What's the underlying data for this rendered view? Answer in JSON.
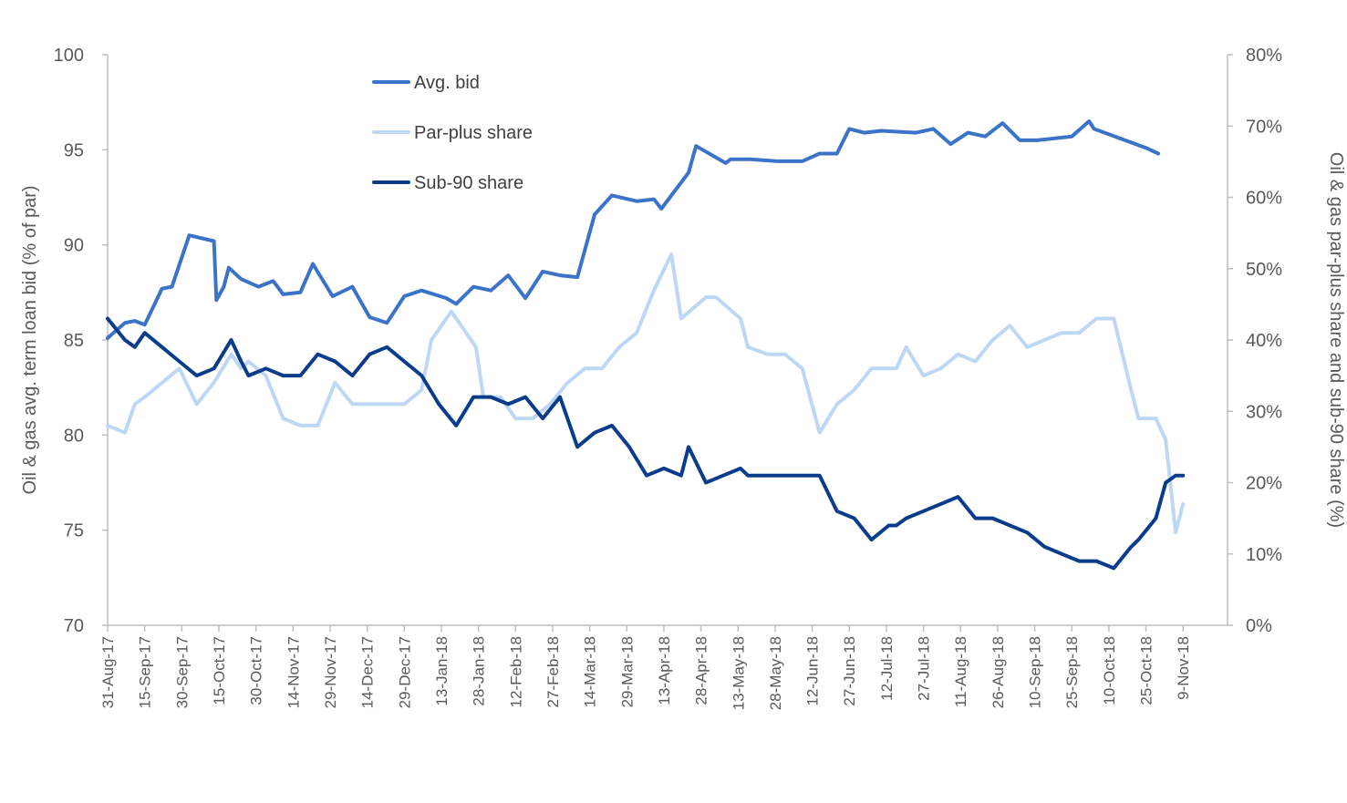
{
  "chart_data": {
    "type": "line",
    "title": "",
    "ylabel_left": "Oil & gas  avg. term loan bid (% of par)",
    "ylabel_right": "Oil & gas par-plus share and sub-90 share (%)",
    "xlabel": "",
    "y_left_range": [
      70,
      100
    ],
    "y_left_ticks": [
      70,
      75,
      80,
      85,
      90,
      95,
      100
    ],
    "y_right_range": [
      0,
      80
    ],
    "y_right_ticks": [
      "0%",
      "10%",
      "20%",
      "30%",
      "40%",
      "50%",
      "60%",
      "70%",
      "80%"
    ],
    "x_range": [
      "2017-08-31",
      "2018-11-27"
    ],
    "x_ticks": [
      "31-Aug-17",
      "15-Sep-17",
      "30-Sep-17",
      "15-Oct-17",
      "30-Oct-17",
      "14-Nov-17",
      "29-Nov-17",
      "14-Dec-17",
      "29-Dec-17",
      "13-Jan-18",
      "28-Jan-18",
      "12-Feb-18",
      "27-Feb-18",
      "14-Mar-18",
      "29-Mar-18",
      "13-Apr-18",
      "28-Apr-18",
      "13-May-18",
      "28-May-18",
      "12-Jun-18",
      "27-Jun-18",
      "12-Jul-18",
      "27-Jul-18",
      "11-Aug-18",
      "26-Aug-18",
      "10-Sep-18",
      "25-Sep-18",
      "10-Oct-18",
      "25-Oct-18",
      "9-Nov-18"
    ],
    "grid": false,
    "legend_position": "top-left-inside",
    "series": [
      {
        "name": "Avg. bid",
        "axis": "left",
        "color": "#3B73C8",
        "points": [
          [
            "2017-08-31",
            85.1
          ],
          [
            "2017-09-07",
            85.9
          ],
          [
            "2017-09-11",
            86.0
          ],
          [
            "2017-09-15",
            85.8
          ],
          [
            "2017-09-22",
            87.7
          ],
          [
            "2017-09-26",
            87.8
          ],
          [
            "2017-10-03",
            90.5
          ],
          [
            "2017-10-13",
            90.2
          ],
          [
            "2017-10-14",
            87.1
          ],
          [
            "2017-10-17",
            87.8
          ],
          [
            "2017-10-19",
            88.8
          ],
          [
            "2017-10-24",
            88.2
          ],
          [
            "2017-10-31",
            87.8
          ],
          [
            "2017-11-06",
            88.1
          ],
          [
            "2017-11-10",
            87.4
          ],
          [
            "2017-11-17",
            87.5
          ],
          [
            "2017-11-22",
            89.0
          ],
          [
            "2017-11-30",
            87.3
          ],
          [
            "2017-12-08",
            87.8
          ],
          [
            "2017-12-15",
            86.2
          ],
          [
            "2017-12-22",
            85.9
          ],
          [
            "2017-12-29",
            87.3
          ],
          [
            "2018-01-05",
            87.6
          ],
          [
            "2018-01-15",
            87.2
          ],
          [
            "2018-01-19",
            86.9
          ],
          [
            "2018-01-26",
            87.8
          ],
          [
            "2018-02-02",
            87.6
          ],
          [
            "2018-02-09",
            88.4
          ],
          [
            "2018-02-16",
            87.2
          ],
          [
            "2018-02-23",
            88.6
          ],
          [
            "2018-03-02",
            88.4
          ],
          [
            "2018-03-09",
            88.3
          ],
          [
            "2018-03-16",
            91.6
          ],
          [
            "2018-03-23",
            92.6
          ],
          [
            "2018-04-02",
            92.3
          ],
          [
            "2018-04-09",
            92.4
          ],
          [
            "2018-04-12",
            91.9
          ],
          [
            "2018-04-23",
            93.8
          ],
          [
            "2018-04-26",
            95.2
          ],
          [
            "2018-05-08",
            94.3
          ],
          [
            "2018-05-10",
            94.5
          ],
          [
            "2018-05-18",
            94.5
          ],
          [
            "2018-05-29",
            94.4
          ],
          [
            "2018-06-08",
            94.4
          ],
          [
            "2018-06-15",
            94.8
          ],
          [
            "2018-06-22",
            94.8
          ],
          [
            "2018-06-27",
            96.1
          ],
          [
            "2018-07-03",
            95.9
          ],
          [
            "2018-07-10",
            96.0
          ],
          [
            "2018-07-24",
            95.9
          ],
          [
            "2018-07-31",
            96.1
          ],
          [
            "2018-08-07",
            95.3
          ],
          [
            "2018-08-14",
            95.9
          ],
          [
            "2018-08-21",
            95.7
          ],
          [
            "2018-08-28",
            96.4
          ],
          [
            "2018-09-04",
            95.5
          ],
          [
            "2018-09-11",
            95.5
          ],
          [
            "2018-09-25",
            95.7
          ],
          [
            "2018-10-02",
            96.5
          ],
          [
            "2018-10-04",
            96.1
          ],
          [
            "2018-10-25",
            95.1
          ],
          [
            "2018-10-30",
            94.8
          ]
        ]
      },
      {
        "name": "Par-plus share",
        "axis": "right",
        "color": "#BDD7F5",
        "points": [
          [
            "2017-08-31",
            0.28
          ],
          [
            "2017-09-07",
            0.27
          ],
          [
            "2017-09-11",
            0.31
          ],
          [
            "2017-09-15",
            0.32
          ],
          [
            "2017-09-22",
            0.34
          ],
          [
            "2017-09-29",
            0.36
          ],
          [
            "2017-10-06",
            0.31
          ],
          [
            "2017-10-13",
            0.34
          ],
          [
            "2017-10-20",
            0.38
          ],
          [
            "2017-10-24",
            0.36
          ],
          [
            "2017-10-27",
            0.37
          ],
          [
            "2017-11-03",
            0.35
          ],
          [
            "2017-11-10",
            0.29
          ],
          [
            "2017-11-17",
            0.28
          ],
          [
            "2017-11-24",
            0.28
          ],
          [
            "2017-12-01",
            0.34
          ],
          [
            "2017-12-08",
            0.31
          ],
          [
            "2017-12-15",
            0.31
          ],
          [
            "2017-12-22",
            0.31
          ],
          [
            "2017-12-29",
            0.31
          ],
          [
            "2018-01-05",
            0.33
          ],
          [
            "2018-01-09",
            0.4
          ],
          [
            "2018-01-17",
            0.44
          ],
          [
            "2018-01-23",
            0.41
          ],
          [
            "2018-01-27",
            0.39
          ],
          [
            "2018-01-30",
            0.32
          ],
          [
            "2018-02-06",
            0.32
          ],
          [
            "2018-02-12",
            0.29
          ],
          [
            "2018-02-19",
            0.29
          ],
          [
            "2018-02-26",
            0.31
          ],
          [
            "2018-03-05",
            0.34
          ],
          [
            "2018-03-12",
            0.36
          ],
          [
            "2018-03-19",
            0.36
          ],
          [
            "2018-03-26",
            0.39
          ],
          [
            "2018-04-02",
            0.41
          ],
          [
            "2018-04-09",
            0.47
          ],
          [
            "2018-04-16",
            0.52
          ],
          [
            "2018-04-20",
            0.43
          ],
          [
            "2018-04-30",
            0.46
          ],
          [
            "2018-05-04",
            0.46
          ],
          [
            "2018-05-14",
            0.43
          ],
          [
            "2018-05-17",
            0.39
          ],
          [
            "2018-05-25",
            0.38
          ],
          [
            "2018-06-01",
            0.38
          ],
          [
            "2018-06-08",
            0.36
          ],
          [
            "2018-06-15",
            0.27
          ],
          [
            "2018-06-22",
            0.31
          ],
          [
            "2018-06-29",
            0.33
          ],
          [
            "2018-07-06",
            0.36
          ],
          [
            "2018-07-13",
            0.36
          ],
          [
            "2018-07-16",
            0.36
          ],
          [
            "2018-07-20",
            0.39
          ],
          [
            "2018-07-27",
            0.35
          ],
          [
            "2018-08-03",
            0.36
          ],
          [
            "2018-08-10",
            0.38
          ],
          [
            "2018-08-17",
            0.37
          ],
          [
            "2018-08-24",
            0.4
          ],
          [
            "2018-08-31",
            0.42
          ],
          [
            "2018-09-07",
            0.39
          ],
          [
            "2018-09-14",
            0.4
          ],
          [
            "2018-09-21",
            0.41
          ],
          [
            "2018-09-28",
            0.41
          ],
          [
            "2018-10-05",
            0.43
          ],
          [
            "2018-10-12",
            0.43
          ],
          [
            "2018-10-19",
            0.33
          ],
          [
            "2018-10-22",
            0.29
          ],
          [
            "2018-10-29",
            0.29
          ],
          [
            "2018-11-02",
            0.26
          ],
          [
            "2018-11-06",
            0.13
          ],
          [
            "2018-11-09",
            0.17
          ]
        ]
      },
      {
        "name": "Sub-90 share",
        "axis": "right",
        "color": "#0B3C8C",
        "points": [
          [
            "2017-08-31",
            0.43
          ],
          [
            "2017-09-07",
            0.4
          ],
          [
            "2017-09-11",
            0.39
          ],
          [
            "2017-09-15",
            0.41
          ],
          [
            "2017-09-22",
            0.39
          ],
          [
            "2017-09-29",
            0.37
          ],
          [
            "2017-10-06",
            0.35
          ],
          [
            "2017-10-13",
            0.36
          ],
          [
            "2017-10-20",
            0.4
          ],
          [
            "2017-10-24",
            0.37
          ],
          [
            "2017-10-27",
            0.35
          ],
          [
            "2017-11-03",
            0.36
          ],
          [
            "2017-11-10",
            0.35
          ],
          [
            "2017-11-17",
            0.35
          ],
          [
            "2017-11-24",
            0.38
          ],
          [
            "2017-12-01",
            0.37
          ],
          [
            "2017-12-08",
            0.35
          ],
          [
            "2017-12-15",
            0.38
          ],
          [
            "2017-12-22",
            0.39
          ],
          [
            "2017-12-29",
            0.37
          ],
          [
            "2018-01-05",
            0.35
          ],
          [
            "2018-01-12",
            0.31
          ],
          [
            "2018-01-19",
            0.28
          ],
          [
            "2018-01-26",
            0.32
          ],
          [
            "2018-02-02",
            0.32
          ],
          [
            "2018-02-09",
            0.31
          ],
          [
            "2018-02-16",
            0.32
          ],
          [
            "2018-02-23",
            0.29
          ],
          [
            "2018-03-02",
            0.32
          ],
          [
            "2018-03-09",
            0.25
          ],
          [
            "2018-03-16",
            0.27
          ],
          [
            "2018-03-23",
            0.28
          ],
          [
            "2018-03-30",
            0.25
          ],
          [
            "2018-04-06",
            0.21
          ],
          [
            "2018-04-13",
            0.22
          ],
          [
            "2018-04-20",
            0.21
          ],
          [
            "2018-04-23",
            0.25
          ],
          [
            "2018-04-30",
            0.2
          ],
          [
            "2018-05-07",
            0.21
          ],
          [
            "2018-05-14",
            0.22
          ],
          [
            "2018-05-17",
            0.21
          ],
          [
            "2018-05-21",
            0.21
          ],
          [
            "2018-05-28",
            0.21
          ],
          [
            "2018-06-04",
            0.21
          ],
          [
            "2018-06-08",
            0.21
          ],
          [
            "2018-06-15",
            0.21
          ],
          [
            "2018-06-22",
            0.16
          ],
          [
            "2018-06-29",
            0.15
          ],
          [
            "2018-07-06",
            0.12
          ],
          [
            "2018-07-13",
            0.14
          ],
          [
            "2018-07-16",
            0.14
          ],
          [
            "2018-07-20",
            0.15
          ],
          [
            "2018-07-27",
            0.16
          ],
          [
            "2018-08-03",
            0.17
          ],
          [
            "2018-08-10",
            0.18
          ],
          [
            "2018-08-17",
            0.15
          ],
          [
            "2018-08-24",
            0.15
          ],
          [
            "2018-08-31",
            0.14
          ],
          [
            "2018-09-07",
            0.13
          ],
          [
            "2018-09-14",
            0.11
          ],
          [
            "2018-09-21",
            0.1
          ],
          [
            "2018-09-28",
            0.09
          ],
          [
            "2018-10-05",
            0.09
          ],
          [
            "2018-10-12",
            0.08
          ],
          [
            "2018-10-19",
            0.11
          ],
          [
            "2018-10-22",
            0.12
          ],
          [
            "2018-10-29",
            0.15
          ],
          [
            "2018-11-02",
            0.2
          ],
          [
            "2018-11-06",
            0.21
          ],
          [
            "2018-11-09",
            0.21
          ]
        ]
      }
    ]
  }
}
